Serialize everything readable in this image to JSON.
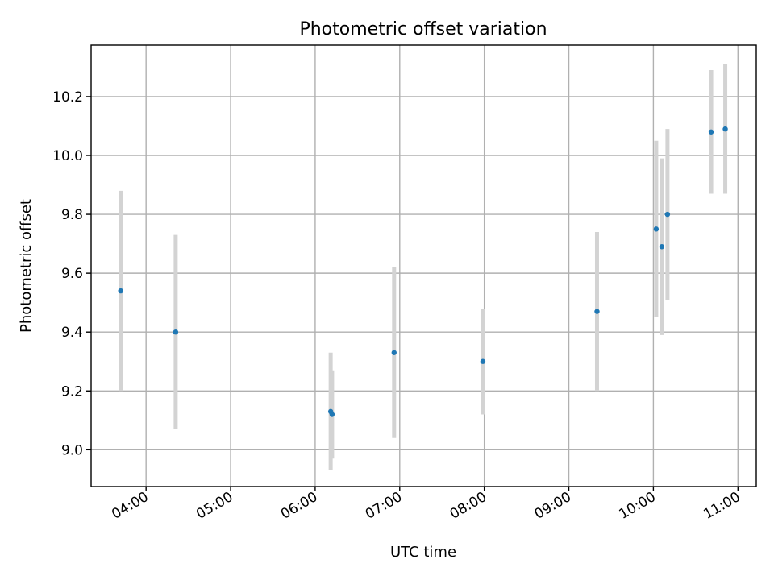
{
  "chart_data": {
    "type": "scatter",
    "title": "Photometric offset variation",
    "xlabel": "UTC time",
    "ylabel": "Photometric offset",
    "xlim": [
      "03:21",
      "11:13"
    ],
    "ylim": [
      8.875,
      10.375
    ],
    "x_ticks": [
      "04:00",
      "05:00",
      "06:00",
      "07:00",
      "08:00",
      "09:00",
      "10:00",
      "11:00"
    ],
    "y_ticks": [
      "9.0",
      "9.2",
      "9.4",
      "9.6",
      "9.8",
      "10.0",
      "10.2"
    ],
    "grid": true,
    "series": [
      {
        "marker_color": "#1f77b4",
        "errorbar_color": "#d3d3d3",
        "points": [
          {
            "x": "03:42",
            "y": 9.54,
            "yerr": 0.34
          },
          {
            "x": "04:21",
            "y": 9.4,
            "yerr": 0.33
          },
          {
            "x": "06:11",
            "y": 9.13,
            "yerr": 0.2
          },
          {
            "x": "06:12",
            "y": 9.12,
            "yerr": 0.15
          },
          {
            "x": "06:56",
            "y": 9.33,
            "yerr": 0.29
          },
          {
            "x": "07:59",
            "y": 9.3,
            "yerr": 0.18
          },
          {
            "x": "09:20",
            "y": 9.47,
            "yerr": 0.27
          },
          {
            "x": "10:02",
            "y": 9.75,
            "yerr": 0.3
          },
          {
            "x": "10:06",
            "y": 9.69,
            "yerr": 0.3
          },
          {
            "x": "10:10",
            "y": 9.8,
            "yerr": 0.29
          },
          {
            "x": "10:41",
            "y": 10.08,
            "yerr": 0.21
          },
          {
            "x": "10:51",
            "y": 10.09,
            "yerr": 0.22
          }
        ]
      }
    ]
  }
}
